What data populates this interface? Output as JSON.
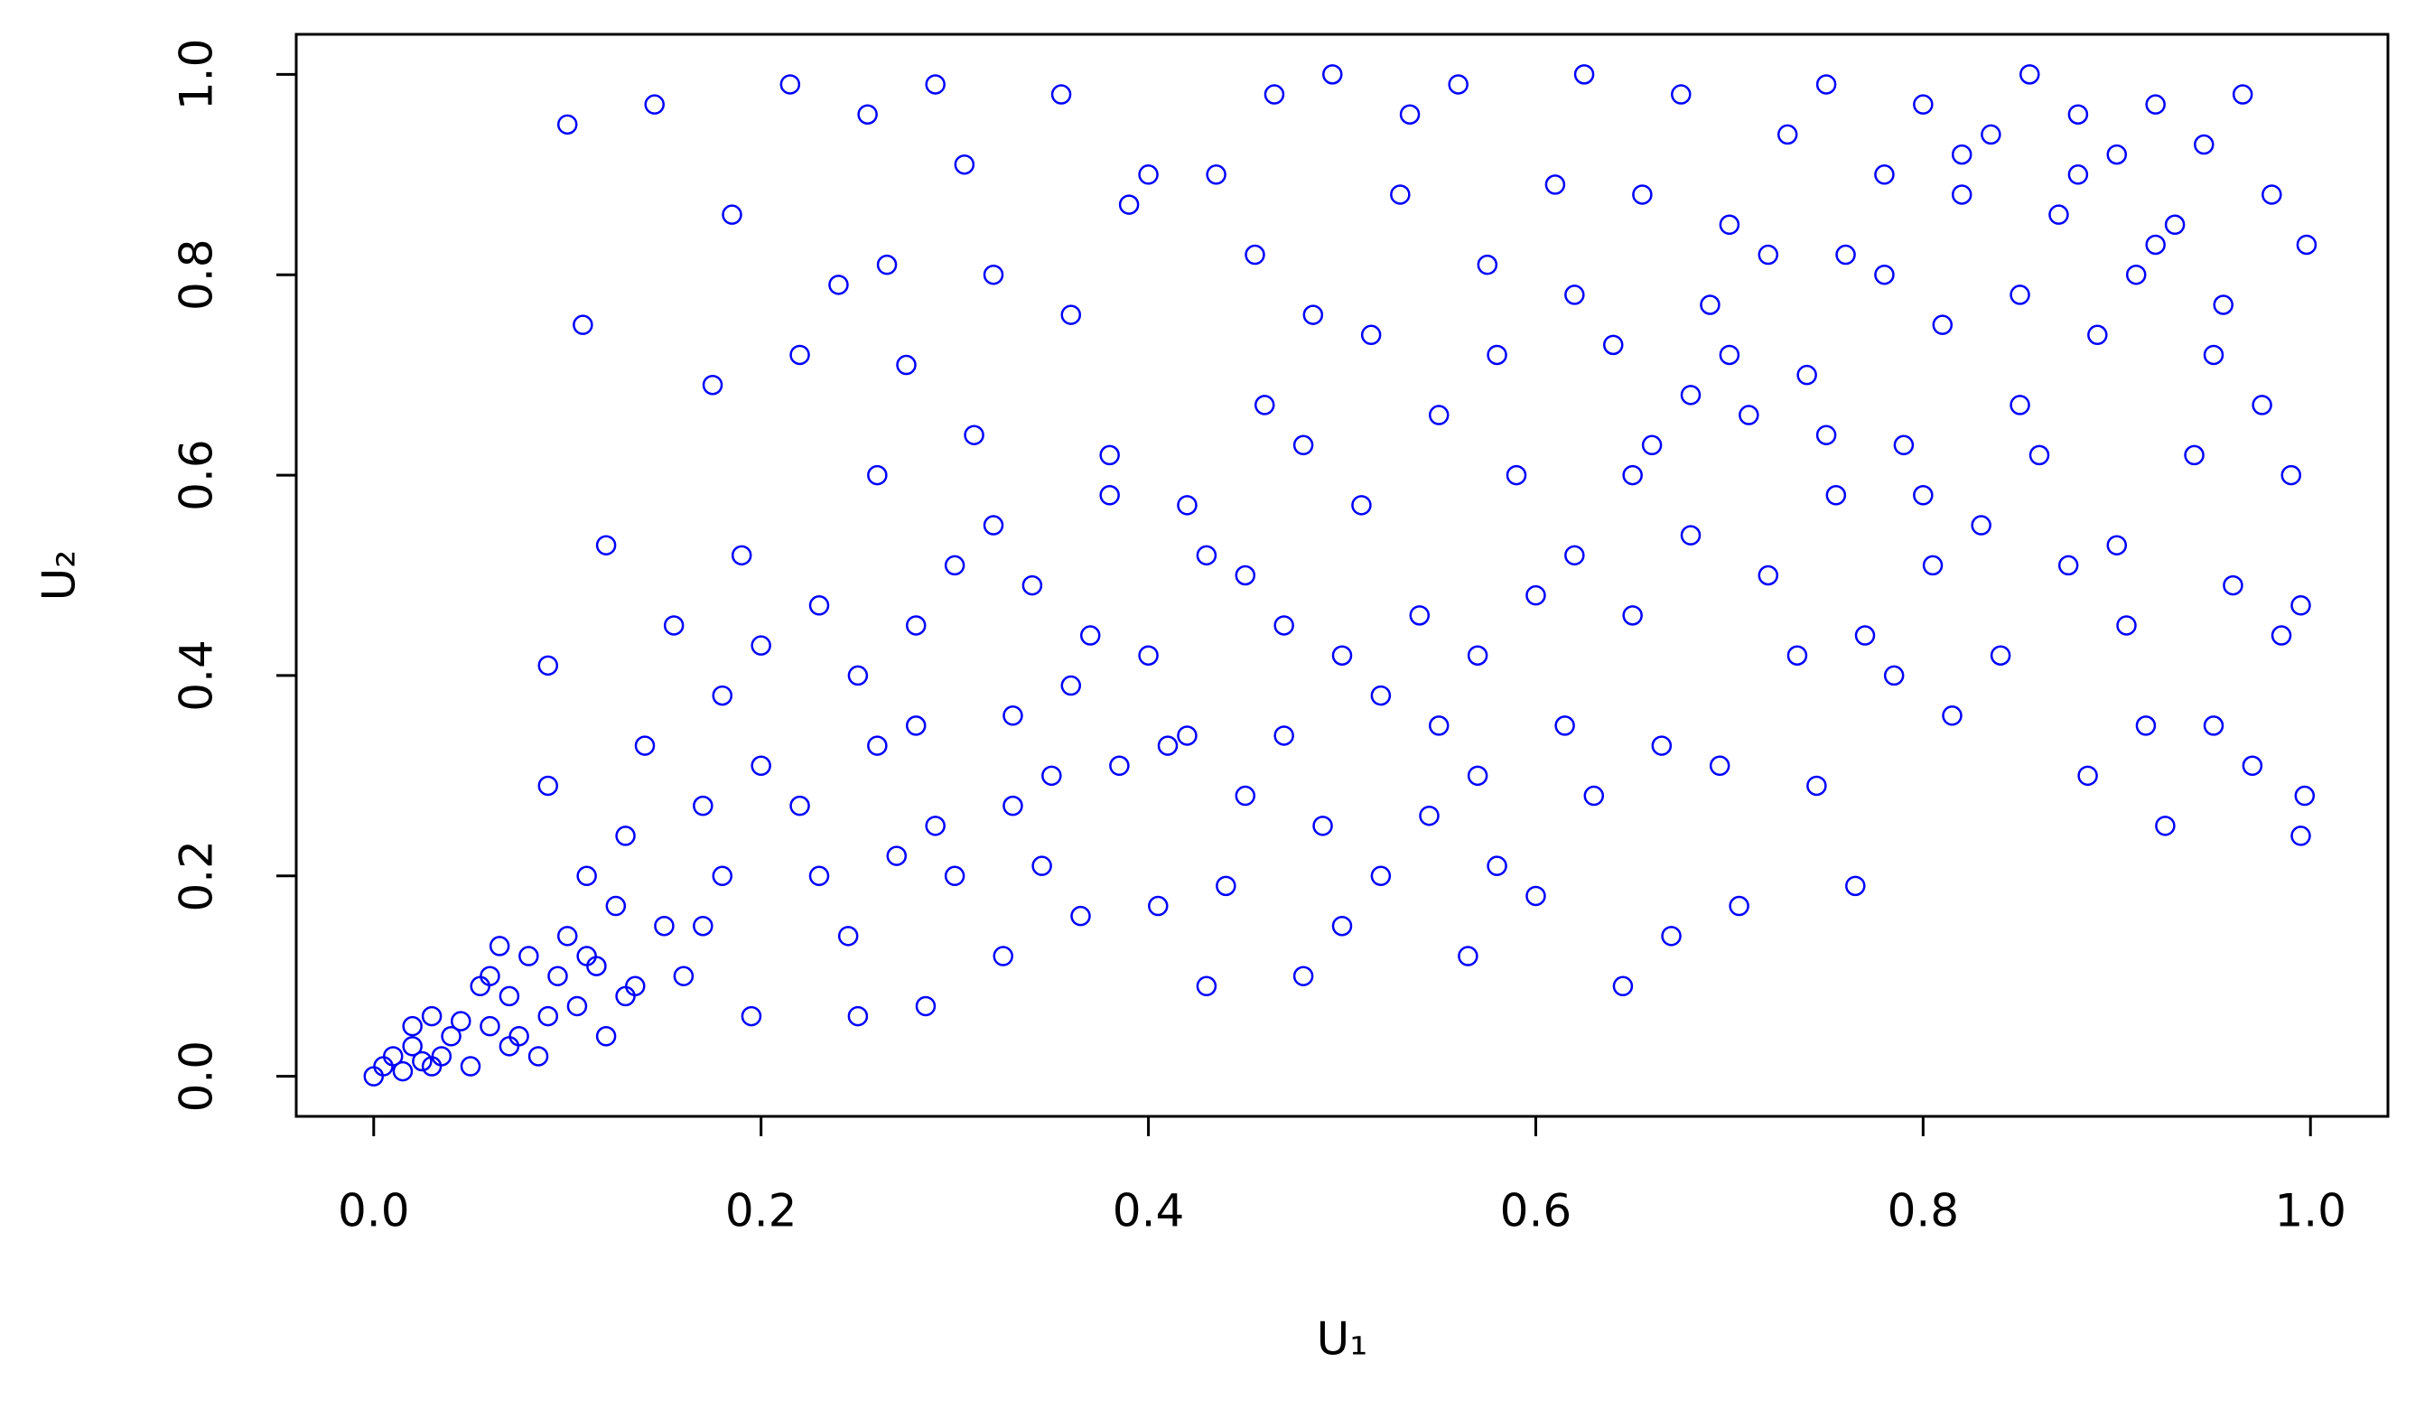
{
  "chart_data": {
    "type": "scatter",
    "x_label": "U₁",
    "y_label": "U₂",
    "color": "#0000ff",
    "xlim": [
      -0.04,
      1.04
    ],
    "ylim": [
      -0.04,
      1.04
    ],
    "xticks": [
      {
        "value": 0,
        "label": "0.0"
      },
      0.2,
      0.4,
      0.6,
      0.8,
      {
        "value": 1,
        "label": "1.0"
      }
    ],
    "yticks": [
      {
        "value": 0,
        "label": "0.0"
      },
      0.2,
      0.4,
      0.6,
      0.8,
      {
        "value": 1,
        "label": "1.0"
      }
    ],
    "x": [
      0.0,
      0.005,
      0.01,
      0.015,
      0.02,
      0.025,
      0.03,
      0.035,
      0.04,
      0.045,
      0.05,
      0.055,
      0.06,
      0.065,
      0.07,
      0.075,
      0.08,
      0.085,
      0.09,
      0.095,
      0.1,
      0.105,
      0.11,
      0.115,
      0.12,
      0.125,
      0.13,
      0.135,
      0.14,
      0.15,
      0.155,
      0.16,
      0.17,
      0.175,
      0.18,
      0.185,
      0.19,
      0.195,
      0.2,
      0.1,
      0.145,
      0.108,
      0.12,
      0.09,
      0.09,
      0.215,
      0.22,
      0.23,
      0.24,
      0.245,
      0.25,
      0.255,
      0.26,
      0.265,
      0.275,
      0.28,
      0.285,
      0.29,
      0.29,
      0.3,
      0.305,
      0.31,
      0.32,
      0.325,
      0.33,
      0.34,
      0.345,
      0.355,
      0.36,
      0.365,
      0.37,
      0.38,
      0.385,
      0.39,
      0.4,
      0.405,
      0.41,
      0.42,
      0.43,
      0.435,
      0.44,
      0.45,
      0.455,
      0.46,
      0.465,
      0.47,
      0.48,
      0.485,
      0.49,
      0.495,
      0.5,
      0.51,
      0.515,
      0.52,
      0.53,
      0.535,
      0.54,
      0.545,
      0.55,
      0.56,
      0.565,
      0.57,
      0.575,
      0.58,
      0.59,
      0.6,
      0.61,
      0.615,
      0.62,
      0.625,
      0.63,
      0.64,
      0.645,
      0.65,
      0.655,
      0.66,
      0.665,
      0.67,
      0.675,
      0.68,
      0.69,
      0.695,
      0.7,
      0.705,
      0.71,
      0.72,
      0.73,
      0.735,
      0.74,
      0.745,
      0.75,
      0.755,
      0.76,
      0.765,
      0.77,
      0.78,
      0.785,
      0.79,
      0.8,
      0.805,
      0.81,
      0.815,
      0.82,
      0.83,
      0.835,
      0.84,
      0.85,
      0.855,
      0.86,
      0.87,
      0.875,
      0.88,
      0.885,
      0.89,
      0.9,
      0.905,
      0.91,
      0.915,
      0.92,
      0.925,
      0.93,
      0.94,
      0.945,
      0.95,
      0.955,
      0.96,
      0.965,
      0.97,
      0.975,
      0.98,
      0.985,
      0.99,
      0.995,
      0.998,
      0.995,
      0.997,
      0.35,
      0.3,
      0.28,
      0.25,
      0.22,
      0.2,
      0.27,
      0.32,
      0.4,
      0.45,
      0.5,
      0.55,
      0.6,
      0.42,
      0.38,
      0.58,
      0.48,
      0.52,
      0.65,
      0.7,
      0.75,
      0.8,
      0.85,
      0.9,
      0.95,
      0.88,
      0.92,
      0.82,
      0.78,
      0.72,
      0.68,
      0.62,
      0.57,
      0.47,
      0.43,
      0.36,
      0.33,
      0.26,
      0.23,
      0.18,
      0.17,
      0.13,
      0.11,
      0.07,
      0.06,
      0.03,
      0.02
    ],
    "y": [
      0.0,
      0.01,
      0.02,
      0.005,
      0.03,
      0.015,
      0.06,
      0.02,
      0.04,
      0.055,
      0.01,
      0.09,
      0.05,
      0.13,
      0.08,
      0.04,
      0.12,
      0.02,
      0.06,
      0.1,
      0.14,
      0.07,
      0.2,
      0.11,
      0.04,
      0.17,
      0.24,
      0.09,
      0.33,
      0.15,
      0.45,
      0.1,
      0.27,
      0.69,
      0.2,
      0.86,
      0.52,
      0.06,
      0.31,
      0.95,
      0.97,
      0.75,
      0.53,
      0.41,
      0.29,
      0.99,
      0.72,
      0.47,
      0.79,
      0.14,
      0.06,
      0.96,
      0.6,
      0.81,
      0.71,
      0.45,
      0.07,
      0.25,
      0.99,
      0.51,
      0.91,
      0.64,
      0.8,
      0.12,
      0.36,
      0.49,
      0.21,
      0.98,
      0.76,
      0.16,
      0.44,
      0.62,
      0.31,
      0.87,
      0.9,
      0.17,
      0.33,
      0.57,
      0.09,
      0.9,
      0.19,
      0.5,
      0.82,
      0.67,
      0.98,
      0.34,
      0.1,
      0.76,
      0.25,
      1.0,
      0.15,
      0.57,
      0.74,
      0.2,
      0.88,
      0.96,
      0.46,
      0.26,
      0.66,
      0.99,
      0.12,
      0.42,
      0.81,
      0.21,
      0.6,
      0.18,
      0.89,
      0.35,
      0.52,
      1.0,
      0.28,
      0.73,
      0.09,
      0.46,
      0.88,
      0.63,
      0.33,
      0.14,
      0.98,
      0.54,
      0.77,
      0.31,
      0.85,
      0.17,
      0.66,
      0.5,
      0.94,
      0.42,
      0.7,
      0.29,
      0.99,
      0.58,
      0.82,
      0.19,
      0.44,
      0.9,
      0.4,
      0.63,
      0.97,
      0.51,
      0.75,
      0.36,
      0.88,
      0.55,
      0.94,
      0.42,
      0.78,
      1.0,
      0.62,
      0.86,
      0.51,
      0.96,
      0.3,
      0.74,
      0.92,
      0.45,
      0.8,
      0.35,
      0.97,
      0.25,
      0.85,
      0.62,
      0.93,
      0.35,
      0.77,
      0.49,
      0.98,
      0.31,
      0.67,
      0.88,
      0.44,
      0.6,
      0.24,
      0.83,
      0.47,
      0.28,
      0.3,
      0.2,
      0.35,
      0.4,
      0.27,
      0.43,
      0.22,
      0.55,
      0.42,
      0.28,
      0.42,
      0.35,
      0.48,
      0.34,
      0.58,
      0.72,
      0.63,
      0.38,
      0.6,
      0.72,
      0.64,
      0.58,
      0.67,
      0.53,
      0.72,
      0.9,
      0.83,
      0.92,
      0.8,
      0.82,
      0.68,
      0.78,
      0.3,
      0.45,
      0.52,
      0.39,
      0.27,
      0.33,
      0.2,
      0.38,
      0.15,
      0.08,
      0.12,
      0.03,
      0.1,
      0.01,
      0.05
    ]
  }
}
